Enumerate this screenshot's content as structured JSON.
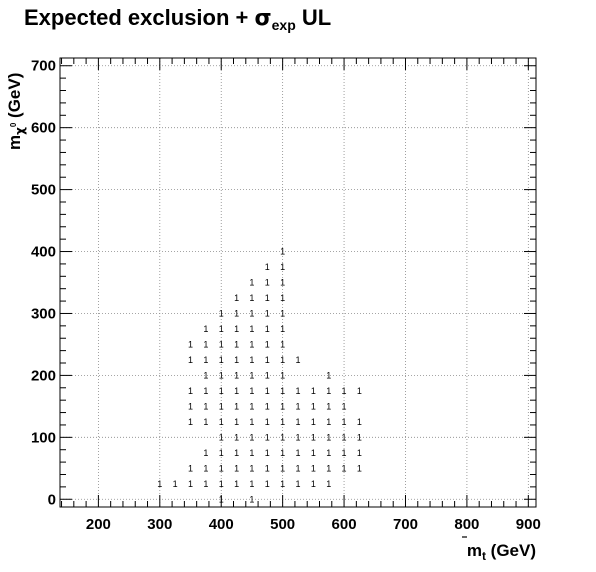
{
  "chart_data": {
    "type": "scatter",
    "title": {
      "main": "Expected exclusion + ",
      "sigma": "σ",
      "sub": "exp",
      "tail": " UL"
    },
    "xlabel": {
      "main": "m",
      "sub": "t",
      "tail": " (GeV)"
    },
    "ylabel": {
      "main": "m",
      "sub": "χ",
      "sup": "0",
      "tail": " (GeV)"
    },
    "xlim": [
      137.5,
      912.5
    ],
    "ylim": [
      -12.5,
      712.5
    ],
    "xticks": [
      200,
      300,
      400,
      500,
      600,
      700,
      800,
      900
    ],
    "yticks": [
      0,
      100,
      200,
      300,
      400,
      500,
      600,
      700
    ],
    "grid": true,
    "marker_text": "1",
    "points": [
      [
        300,
        25
      ],
      [
        325,
        25
      ],
      [
        350,
        25
      ],
      [
        375,
        25
      ],
      [
        400,
        25
      ],
      [
        425,
        25
      ],
      [
        450,
        25
      ],
      [
        475,
        25
      ],
      [
        500,
        25
      ],
      [
        525,
        25
      ],
      [
        550,
        25
      ],
      [
        575,
        25
      ],
      [
        350,
        50
      ],
      [
        375,
        50
      ],
      [
        400,
        50
      ],
      [
        425,
        50
      ],
      [
        450,
        50
      ],
      [
        475,
        50
      ],
      [
        500,
        50
      ],
      [
        525,
        50
      ],
      [
        550,
        50
      ],
      [
        575,
        50
      ],
      [
        600,
        50
      ],
      [
        625,
        50
      ],
      [
        375,
        75
      ],
      [
        400,
        75
      ],
      [
        425,
        75
      ],
      [
        450,
        75
      ],
      [
        475,
        75
      ],
      [
        500,
        75
      ],
      [
        525,
        75
      ],
      [
        550,
        75
      ],
      [
        575,
        75
      ],
      [
        600,
        75
      ],
      [
        625,
        75
      ],
      [
        400,
        100
      ],
      [
        425,
        100
      ],
      [
        450,
        100
      ],
      [
        475,
        100
      ],
      [
        500,
        100
      ],
      [
        525,
        100
      ],
      [
        550,
        100
      ],
      [
        575,
        100
      ],
      [
        600,
        100
      ],
      [
        625,
        100
      ],
      [
        350,
        125
      ],
      [
        375,
        125
      ],
      [
        400,
        125
      ],
      [
        425,
        125
      ],
      [
        450,
        125
      ],
      [
        475,
        125
      ],
      [
        500,
        125
      ],
      [
        525,
        125
      ],
      [
        550,
        125
      ],
      [
        575,
        125
      ],
      [
        600,
        125
      ],
      [
        625,
        125
      ],
      [
        350,
        150
      ],
      [
        375,
        150
      ],
      [
        400,
        150
      ],
      [
        425,
        150
      ],
      [
        450,
        150
      ],
      [
        475,
        150
      ],
      [
        500,
        150
      ],
      [
        525,
        150
      ],
      [
        550,
        150
      ],
      [
        575,
        150
      ],
      [
        600,
        150
      ],
      [
        350,
        175
      ],
      [
        375,
        175
      ],
      [
        400,
        175
      ],
      [
        425,
        175
      ],
      [
        450,
        175
      ],
      [
        475,
        175
      ],
      [
        500,
        175
      ],
      [
        525,
        175
      ],
      [
        550,
        175
      ],
      [
        575,
        175
      ],
      [
        600,
        175
      ],
      [
        625,
        175
      ],
      [
        375,
        200
      ],
      [
        400,
        200
      ],
      [
        425,
        200
      ],
      [
        450,
        200
      ],
      [
        475,
        200
      ],
      [
        500,
        200
      ],
      [
        575,
        200
      ],
      [
        350,
        225
      ],
      [
        375,
        225
      ],
      [
        400,
        225
      ],
      [
        425,
        225
      ],
      [
        450,
        225
      ],
      [
        475,
        225
      ],
      [
        500,
        225
      ],
      [
        525,
        225
      ],
      [
        350,
        250
      ],
      [
        375,
        250
      ],
      [
        400,
        250
      ],
      [
        425,
        250
      ],
      [
        450,
        250
      ],
      [
        475,
        250
      ],
      [
        500,
        250
      ],
      [
        375,
        275
      ],
      [
        400,
        275
      ],
      [
        425,
        275
      ],
      [
        450,
        275
      ],
      [
        475,
        275
      ],
      [
        500,
        275
      ],
      [
        400,
        300
      ],
      [
        425,
        300
      ],
      [
        450,
        300
      ],
      [
        475,
        300
      ],
      [
        500,
        300
      ],
      [
        425,
        325
      ],
      [
        450,
        325
      ],
      [
        475,
        325
      ],
      [
        500,
        325
      ],
      [
        450,
        350
      ],
      [
        475,
        350
      ],
      [
        500,
        350
      ],
      [
        475,
        375
      ],
      [
        500,
        375
      ],
      [
        500,
        400
      ],
      [
        400,
        0
      ],
      [
        450,
        0
      ]
    ]
  }
}
